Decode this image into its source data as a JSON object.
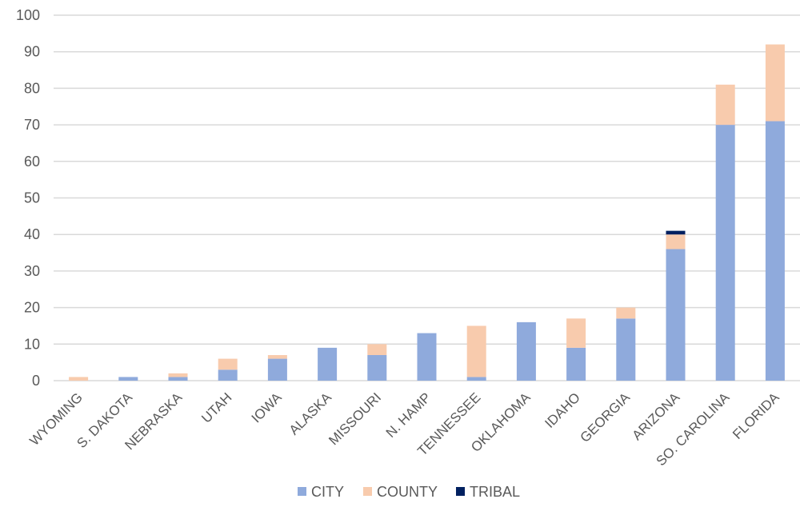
{
  "chart_data": {
    "type": "bar",
    "stacked": true,
    "categories": [
      "WYOMING",
      "S. DAKOTA",
      "NEBRASKA",
      "UTAH",
      "IOWA",
      "ALASKA",
      "MISSOURI",
      "N. HAMP",
      "TENNESSEE",
      "OKLAHOMA",
      "IDAHO",
      "GEORGIA",
      "ARIZONA",
      "SO. CAROLINA",
      "FLORIDA"
    ],
    "series": [
      {
        "name": "CITY",
        "color": "#8faadc",
        "values": [
          0,
          1,
          1,
          3,
          6,
          9,
          7,
          13,
          1,
          16,
          9,
          17,
          36,
          70,
          71
        ]
      },
      {
        "name": "COUNTY",
        "color": "#f8cbad",
        "values": [
          1,
          0,
          1,
          3,
          1,
          0,
          3,
          0,
          14,
          0,
          8,
          3,
          4,
          11,
          21
        ]
      },
      {
        "name": "TRIBAL",
        "color": "#002060",
        "values": [
          0,
          0,
          0,
          0,
          0,
          0,
          0,
          0,
          0,
          0,
          0,
          0,
          1,
          0,
          0
        ]
      }
    ],
    "ylim": [
      0,
      100
    ],
    "yticks": [
      "0",
      "10",
      "20",
      "30",
      "40",
      "50",
      "60",
      "70",
      "80",
      "90",
      "100"
    ],
    "grid": true,
    "legend_position": "bottom",
    "gridline_color": "#d9d9d9",
    "axis_text_color": "#595959"
  }
}
